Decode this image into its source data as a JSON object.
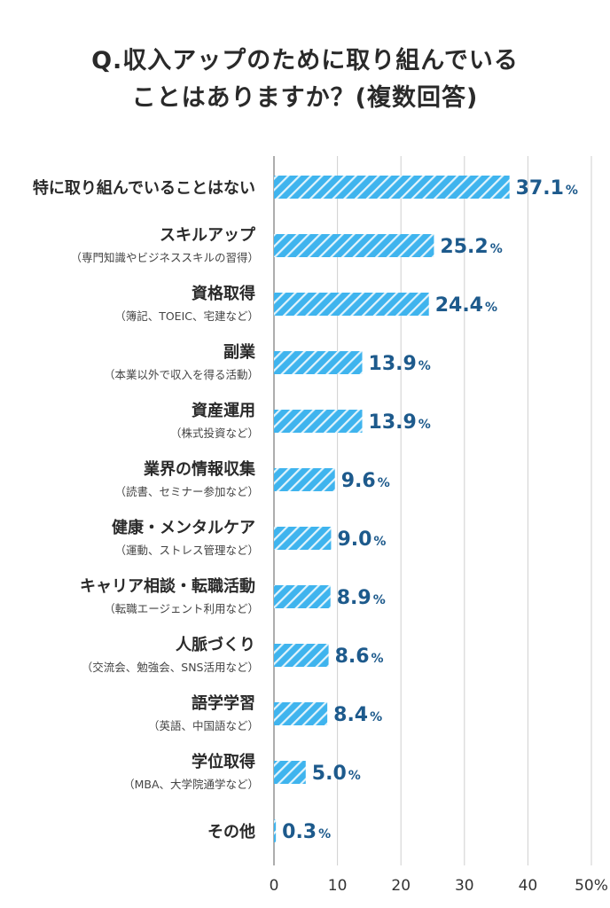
{
  "title_lines": [
    "Q.収入アップのために取り組んでいる",
    "ことはありますか？(複数回答)"
  ],
  "colors": {
    "bar": "#3fb4ee",
    "bar_stripe": "#ffffff",
    "value_text": "#1d5a8c",
    "grid": "#cfcfcf",
    "label_text": "#2a2a2a"
  },
  "chart_data": {
    "type": "bar",
    "orientation": "horizontal",
    "categories": [
      {
        "label": "特に取り組んでいることはない",
        "sub": ""
      },
      {
        "label": "スキルアップ",
        "sub": "（専門知識やビジネススキルの習得）"
      },
      {
        "label": "資格取得",
        "sub": "（簿記、TOEIC、宅建など）"
      },
      {
        "label": "副業",
        "sub": "（本業以外で収入を得る活動）"
      },
      {
        "label": "資産運用",
        "sub": "（株式投資など）"
      },
      {
        "label": "業界の情報収集",
        "sub": "（読書、セミナー参加など）"
      },
      {
        "label": "健康・メンタルケア",
        "sub": "（運動、ストレス管理など）"
      },
      {
        "label": "キャリア相談・転職活動",
        "sub": "（転職エージェント利用など）"
      },
      {
        "label": "人脈づくり",
        "sub": "（交流会、勉強会、SNS活用など）"
      },
      {
        "label": "語学学習",
        "sub": "（英語、中国語など）"
      },
      {
        "label": "学位取得",
        "sub": "（MBA、大学院通学など）"
      },
      {
        "label": "その他",
        "sub": ""
      }
    ],
    "values": [
      37.1,
      25.2,
      24.4,
      13.9,
      13.9,
      9.6,
      9.0,
      8.9,
      8.6,
      8.4,
      5.0,
      0.3
    ],
    "value_labels": [
      "37.1",
      "25.2",
      "24.4",
      "13.9",
      "13.9",
      "9.6",
      "9.0",
      "8.9",
      "8.6",
      "8.4",
      "5.0",
      "0.3"
    ],
    "value_unit": "%",
    "x_ticks": [
      "0",
      "10",
      "20",
      "30",
      "40",
      "50%"
    ],
    "xlim": [
      0,
      50
    ],
    "grid": true
  }
}
